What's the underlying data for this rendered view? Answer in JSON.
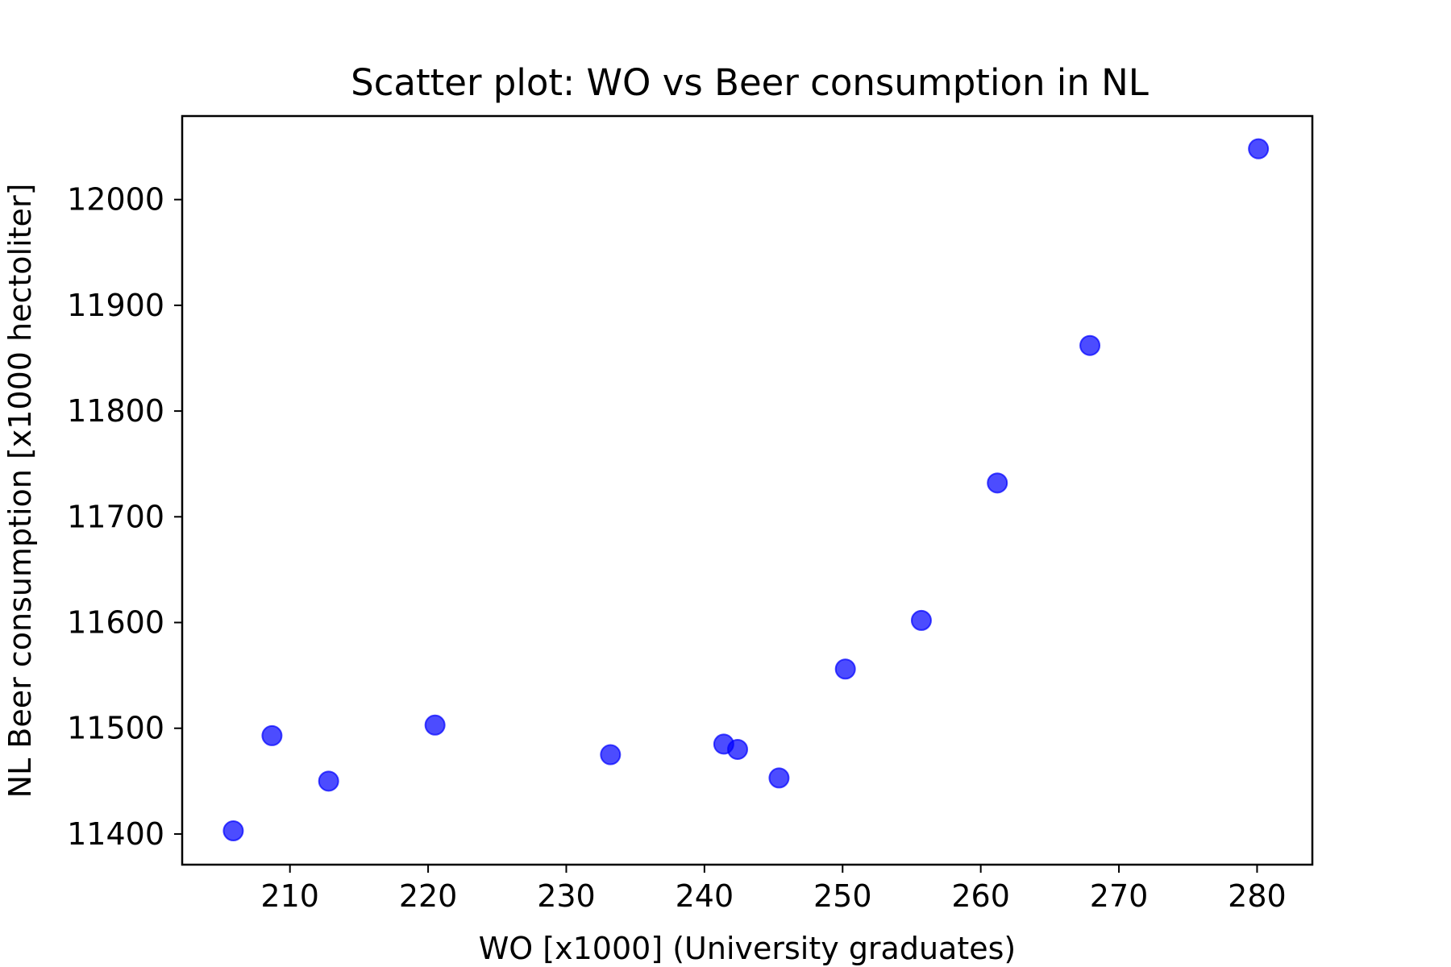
{
  "chart_data": {
    "type": "scatter",
    "title": "Scatter plot: WO vs Beer consumption in NL",
    "xlabel": "WO [x1000] (University graduates)",
    "ylabel": "NL Beer consumption [x1000 hectoliter]",
    "xlim": [
      202.2,
      284.0
    ],
    "ylim": [
      11371,
      12079
    ],
    "xticks": [
      210,
      220,
      230,
      240,
      250,
      260,
      270,
      280
    ],
    "yticks": [
      11400,
      11500,
      11600,
      11700,
      11800,
      11900,
      12000
    ],
    "grid": false,
    "marker_color": "#0000ff",
    "marker_alpha": 0.7,
    "points": [
      {
        "x": 205.9,
        "y": 11403
      },
      {
        "x": 208.7,
        "y": 11493
      },
      {
        "x": 212.8,
        "y": 11450
      },
      {
        "x": 220.5,
        "y": 11503
      },
      {
        "x": 233.2,
        "y": 11475
      },
      {
        "x": 241.4,
        "y": 11485
      },
      {
        "x": 242.4,
        "y": 11480
      },
      {
        "x": 245.4,
        "y": 11453
      },
      {
        "x": 250.2,
        "y": 11556
      },
      {
        "x": 255.7,
        "y": 11602
      },
      {
        "x": 261.2,
        "y": 11732
      },
      {
        "x": 267.9,
        "y": 11862
      },
      {
        "x": 280.1,
        "y": 12048
      }
    ]
  }
}
